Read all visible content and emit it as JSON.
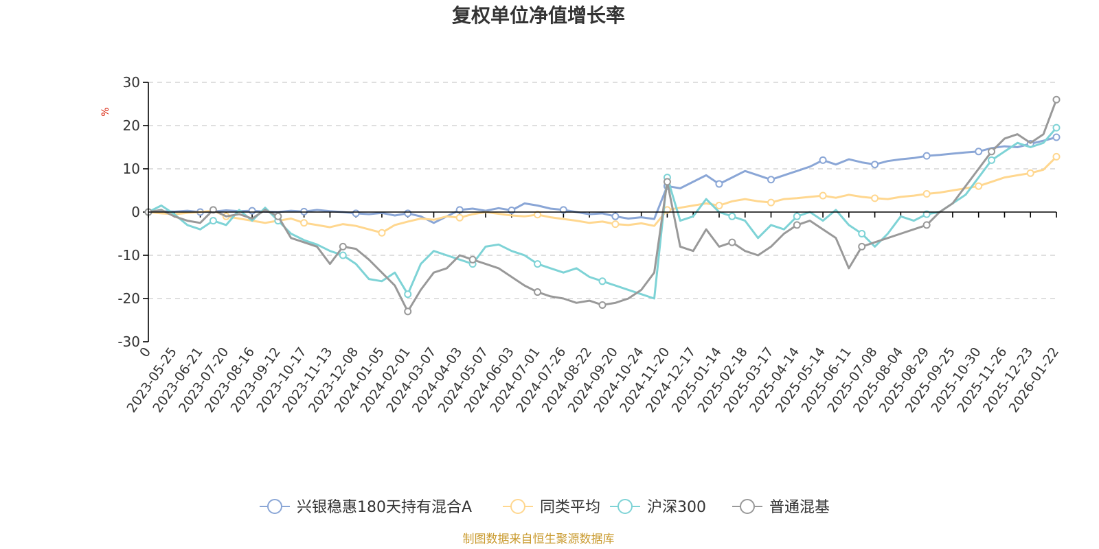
{
  "chart_data": {
    "type": "line",
    "title": "复权单位净值增长率",
    "ylabel": "%",
    "ylim": [
      -30,
      30
    ],
    "yticks": [
      -30,
      -20,
      -10,
      0,
      10,
      20,
      30
    ],
    "grid": true,
    "legend_position": "bottom",
    "source": "制图数据来自恒生聚源数据库",
    "xticks": [
      "0",
      "2023-05-25",
      "2023-06-21",
      "2023-07-20",
      "2023-08-16",
      "2023-09-12",
      "2023-10-17",
      "2023-11-13",
      "2023-12-08",
      "2024-01-05",
      "2024-02-01",
      "2024-03-07",
      "2024-04-03",
      "2024-05-07",
      "2024-06-03",
      "2024-07-01",
      "2024-07-26",
      "2024-08-22",
      "2024-09-20",
      "2024-10-24",
      "2024-11-20",
      "2024-12-17",
      "2025-01-14",
      "2025-02-18",
      "2025-03-17",
      "2025-04-14",
      "2025-05-14",
      "2025-06-11",
      "2025-07-08",
      "2025-08-04",
      "2025-08-29",
      "2025-09-25",
      "2025-10-30",
      "2025-11-26",
      "2025-12-23",
      "2026-01-22"
    ],
    "x_index": [
      0,
      1,
      2,
      3,
      4,
      5,
      6,
      7,
      8,
      9,
      10,
      11,
      12,
      13,
      14,
      15,
      16,
      17,
      18,
      19,
      20,
      21,
      22,
      23,
      24,
      25,
      26,
      27,
      28,
      29,
      30,
      31,
      32,
      33,
      34,
      35,
      36,
      37,
      38,
      39,
      40,
      41,
      42,
      43,
      44,
      45,
      46,
      47,
      48,
      49,
      50,
      51,
      52,
      53,
      54,
      55,
      56,
      57,
      58,
      59,
      60,
      61,
      62,
      63,
      64,
      65,
      66,
      67,
      68,
      69,
      70
    ],
    "series": [
      {
        "name": "兴银稳惠180天持有混合A",
        "color": "#8aa6d6",
        "values": [
          0,
          0.2,
          0.1,
          0.3,
          0,
          0.1,
          0.4,
          0.2,
          0.3,
          0.1,
          0,
          0.3,
          0.1,
          0.5,
          0.2,
          0,
          -0.3,
          -0.5,
          -0.2,
          -0.8,
          -0.3,
          -1,
          -2.5,
          -1,
          0.5,
          0.8,
          0.3,
          0.9,
          0.4,
          2,
          1.5,
          0.8,
          0.5,
          0,
          -0.5,
          -0.3,
          -1,
          -1.5,
          -1.2,
          -1.6,
          6,
          5.5,
          7,
          8.5,
          6.5,
          8,
          9.5,
          8.5,
          7.5,
          8.5,
          9.5,
          10.5,
          12,
          11,
          12.2,
          11.5,
          11,
          11.8,
          12.2,
          12.5,
          13,
          13.2,
          13.5,
          13.8,
          14,
          14.8,
          15.2,
          15,
          15.8,
          16.5,
          17.3
        ],
        "markers": [
          0,
          4,
          8,
          12,
          16,
          20,
          24,
          28,
          32,
          36,
          40,
          44,
          48,
          52,
          56,
          60,
          64,
          68,
          70
        ]
      },
      {
        "name": "同类平均",
        "color": "#ffd78f",
        "values": [
          0,
          -0.3,
          -0.5,
          -0.2,
          0,
          0.3,
          -1,
          -1.5,
          -2,
          -2.5,
          -2,
          -1.5,
          -2.5,
          -3,
          -3.5,
          -2.8,
          -3.2,
          -4,
          -4.8,
          -3,
          -2.2,
          -1.5,
          -1.8,
          -1,
          -1.3,
          -0.5,
          0,
          -0.4,
          -0.8,
          -1,
          -0.6,
          -1.2,
          -1.6,
          -2,
          -2.5,
          -2.2,
          -2.8,
          -3,
          -2.6,
          -3.2,
          0.5,
          1,
          1.5,
          2,
          1.5,
          2.5,
          3,
          2.5,
          2.2,
          3,
          3.2,
          3.5,
          3.8,
          3.3,
          4,
          3.5,
          3.2,
          3,
          3.5,
          3.8,
          4.2,
          4.5,
          5,
          5.5,
          6,
          7,
          8,
          8.5,
          9,
          9.8,
          12.8
        ],
        "markers": [
          0,
          6,
          12,
          18,
          24,
          30,
          36,
          40,
          44,
          48,
          52,
          56,
          60,
          64,
          68,
          70
        ]
      },
      {
        "name": "沪深300",
        "color": "#7ed3d6",
        "values": [
          0,
          1.5,
          -0.5,
          -3,
          -4,
          -2,
          -3,
          0.5,
          -2,
          1,
          -2,
          -5,
          -6.5,
          -7.5,
          -9,
          -10,
          -12,
          -15.5,
          -16,
          -14,
          -19,
          -12,
          -9,
          -10,
          -11,
          -12,
          -8,
          -7.5,
          -9,
          -10,
          -12,
          -13,
          -14,
          -13,
          -15,
          -16,
          -17,
          -18,
          -19,
          -20,
          8,
          -2,
          -1,
          3,
          0,
          -1,
          -2,
          -6,
          -3,
          -4,
          -1,
          0,
          -2,
          0.5,
          -3,
          -5,
          -8,
          -5,
          -1,
          -2,
          -0.5,
          0,
          2,
          4,
          8,
          12,
          14,
          16,
          15,
          16,
          19.5
        ],
        "markers": [
          0,
          5,
          10,
          15,
          20,
          25,
          30,
          35,
          40,
          45,
          50,
          55,
          60,
          65,
          70
        ]
      },
      {
        "name": "普通混基",
        "color": "#999999",
        "values": [
          0,
          0.5,
          -1,
          -2,
          -2.5,
          0.5,
          -1,
          -0.5,
          -1.5,
          0.5,
          -1,
          -6,
          -7,
          -8,
          -12,
          -8,
          -8.5,
          -11,
          -14,
          -17,
          -23,
          -18,
          -14,
          -13,
          -10,
          -11,
          -12,
          -13,
          -15,
          -17,
          -18.5,
          -19.5,
          -20,
          -21,
          -20.5,
          -21.5,
          -21,
          -20,
          -18,
          -14,
          7,
          -8,
          -9,
          -4,
          -8,
          -7,
          -9,
          -10,
          -8,
          -5,
          -3,
          -2,
          -4,
          -6,
          -13,
          -8,
          -7,
          -6,
          -5,
          -4,
          -3,
          0,
          2,
          6,
          10,
          14,
          17,
          18,
          16,
          18,
          26
        ],
        "markers": [
          0,
          5,
          10,
          15,
          20,
          25,
          30,
          35,
          40,
          45,
          50,
          55,
          60,
          65,
          70
        ]
      }
    ]
  }
}
